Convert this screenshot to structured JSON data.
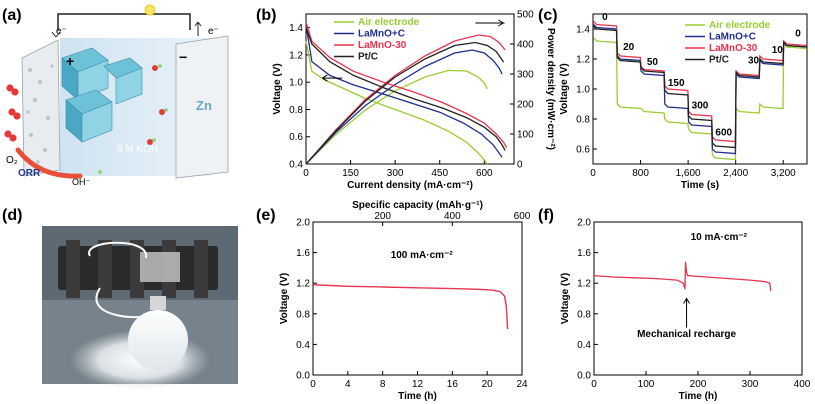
{
  "panels": {
    "a": {
      "label": "(a)",
      "texts": {
        "e_left": "e⁻",
        "e_right": "e⁻",
        "plus": "+",
        "minus": "−",
        "o2": "O₂",
        "orr": "ORR",
        "koh": "6 M KOH",
        "oh": "OH⁻",
        "zn": "Zn"
      }
    },
    "b": {
      "label": "(b)"
    },
    "c": {
      "label": "(c)"
    },
    "d": {
      "label": "(d)"
    },
    "e": {
      "label": "(e)"
    },
    "f": {
      "label": "(f)"
    }
  },
  "colors": {
    "air": "#9ACD32",
    "lamno_c": "#1F2F8F",
    "lamno30": "#E8344E",
    "ptc": "#222222",
    "e_curve": "#E8344E",
    "f_curve": "#E8344E"
  },
  "chart_data": [
    {
      "panel": "b",
      "type": "line",
      "xlabel": "Current density (mA·cm⁻²)",
      "ylabel": "Voltage (V)",
      "ylabel2": "Power density (mW·cm⁻²)",
      "xlim": [
        0,
        700
      ],
      "ylim": [
        0.4,
        1.5
      ],
      "y2lim": [
        0,
        500
      ],
      "xticks": [
        0,
        150,
        300,
        450,
        600
      ],
      "yticks": [
        0.4,
        0.6,
        0.8,
        1.0,
        1.2,
        1.4
      ],
      "y2ticks": [
        0,
        100,
        200,
        300,
        400,
        500
      ],
      "legend": [
        "Air electrode",
        "LaMnO+C",
        "LaMnO-30",
        "Pt/C"
      ],
      "legend_position": "top",
      "series": [
        {
          "name": "Air electrode",
          "axis": "left",
          "x": [
            0,
            20,
            60,
            120,
            200,
            300,
            400,
            480,
            540,
            580,
            600,
            610
          ],
          "y": [
            1.3,
            1.08,
            1.02,
            0.96,
            0.88,
            0.8,
            0.72,
            0.64,
            0.56,
            0.48,
            0.43,
            0.4
          ]
        },
        {
          "name": "Air electrode",
          "axis": "right",
          "x": [
            0,
            100,
            200,
            300,
            400,
            480,
            540,
            580,
            600,
            610
          ],
          "y": [
            0,
            98,
            180,
            244,
            290,
            312,
            310,
            290,
            270,
            250
          ]
        },
        {
          "name": "LaMnO+C",
          "axis": "left",
          "x": [
            0,
            20,
            80,
            160,
            250,
            350,
            450,
            530,
            590,
            630,
            650,
            660
          ],
          "y": [
            1.42,
            1.15,
            1.05,
            0.98,
            0.92,
            0.85,
            0.78,
            0.7,
            0.62,
            0.54,
            0.48,
            0.45
          ]
        },
        {
          "name": "LaMnO+C",
          "axis": "right",
          "x": [
            0,
            100,
            200,
            300,
            400,
            500,
            560,
            600,
            630,
            650,
            660
          ],
          "y": [
            0,
            105,
            195,
            265,
            325,
            370,
            380,
            370,
            345,
            320,
            300
          ]
        },
        {
          "name": "LaMnO-30",
          "axis": "left",
          "x": [
            0,
            20,
            80,
            160,
            260,
            360,
            460,
            540,
            600,
            640,
            665,
            675
          ],
          "y": [
            1.44,
            1.3,
            1.18,
            1.08,
            1.0,
            0.93,
            0.85,
            0.77,
            0.7,
            0.62,
            0.56,
            0.52
          ]
        },
        {
          "name": "LaMnO-30",
          "axis": "right",
          "x": [
            0,
            100,
            200,
            300,
            400,
            500,
            580,
            620,
            650,
            670
          ],
          "y": [
            0,
            113,
            215,
            295,
            360,
            410,
            430,
            425,
            405,
            380
          ]
        },
        {
          "name": "Pt/C",
          "axis": "left",
          "x": [
            0,
            20,
            80,
            160,
            260,
            360,
            460,
            540,
            600,
            640,
            660,
            670
          ],
          "y": [
            1.4,
            1.28,
            1.15,
            1.05,
            0.96,
            0.88,
            0.81,
            0.74,
            0.67,
            0.6,
            0.54,
            0.5
          ]
        },
        {
          "name": "Pt/C",
          "axis": "right",
          "x": [
            0,
            100,
            200,
            300,
            400,
            500,
            570,
            610,
            640,
            665
          ],
          "y": [
            0,
            110,
            210,
            290,
            350,
            395,
            405,
            395,
            375,
            340
          ]
        }
      ],
      "arrows": [
        {
          "direction": "left",
          "near": "Air electrode voltage"
        },
        {
          "direction": "right",
          "near": "power density"
        }
      ]
    },
    {
      "panel": "c",
      "type": "line",
      "xlabel": "Time (s)",
      "ylabel": "Voltage (V)",
      "xlim": [
        0,
        3600
      ],
      "ylim": [
        0.5,
        1.5
      ],
      "xticks": [
        0,
        800,
        1600,
        2400,
        3200
      ],
      "yticks": [
        0.6,
        0.8,
        1.0,
        1.2,
        1.4
      ],
      "legend": [
        "Air electrode",
        "LaMnO+C",
        "LaMnO-30",
        "Pt/C"
      ],
      "legend_position": "top-right",
      "step_labels": [
        {
          "text": "0",
          "x": 200,
          "y": 1.46
        },
        {
          "text": "20",
          "x": 600,
          "y": 1.26
        },
        {
          "text": "50",
          "x": 1000,
          "y": 1.16
        },
        {
          "text": "150",
          "x": 1400,
          "y": 1.02
        },
        {
          "text": "300",
          "x": 1800,
          "y": 0.87
        },
        {
          "text": "600",
          "x": 2200,
          "y": 0.69
        },
        {
          "text": "30",
          "x": 2700,
          "y": 1.17
        },
        {
          "text": "10",
          "x": 3100,
          "y": 1.24
        },
        {
          "text": "0",
          "x": 3450,
          "y": 1.35
        }
      ],
      "segments_x": [
        0,
        400,
        800,
        1200,
        1600,
        2000,
        2400,
        2800,
        3200,
        3600
      ],
      "series": [
        {
          "name": "Air electrode",
          "levels": [
            1.32,
            0.88,
            0.85,
            0.78,
            0.71,
            0.54,
            0.85,
            0.88,
            1.28
          ]
        },
        {
          "name": "LaMnO+C",
          "levels": [
            1.41,
            1.2,
            1.1,
            0.88,
            0.76,
            0.58,
            1.08,
            1.17,
            1.29
          ]
        },
        {
          "name": "LaMnO-30",
          "levels": [
            1.43,
            1.22,
            1.13,
            1.0,
            0.83,
            0.66,
            1.1,
            1.2,
            1.3
          ]
        },
        {
          "name": "Pt/C",
          "levels": [
            1.4,
            1.19,
            1.12,
            0.97,
            0.8,
            0.62,
            1.09,
            1.18,
            1.29
          ]
        }
      ]
    },
    {
      "panel": "e",
      "type": "line",
      "xlabel": "Time (h)",
      "x2label": "Specific capacity (mAh·g⁻¹)",
      "ylabel": "Voltage (V)",
      "annotation": "100 mA·cm⁻²",
      "xlim": [
        0,
        24
      ],
      "x2lim": [
        0,
        600
      ],
      "ylim": [
        0.0,
        2.0
      ],
      "xticks": [
        0,
        4,
        8,
        12,
        16,
        20,
        24
      ],
      "x2ticks": [
        200,
        400,
        600
      ],
      "yticks": [
        0.0,
        0.4,
        0.8,
        1.2,
        1.6,
        2.0
      ],
      "x": [
        0,
        2,
        4,
        8,
        12,
        16,
        19,
        20.5,
        21.5,
        22.0,
        22.2,
        22.35
      ],
      "y": [
        1.18,
        1.17,
        1.16,
        1.15,
        1.14,
        1.13,
        1.12,
        1.11,
        1.09,
        1.03,
        0.9,
        0.6
      ]
    },
    {
      "panel": "f",
      "type": "line",
      "xlabel": "Time (h)",
      "ylabel": "Voltage (V)",
      "annotation": "10 mA·cm⁻²",
      "callout": "Mechanical recharge",
      "xlim": [
        0,
        400
      ],
      "ylim": [
        0.0,
        2.0
      ],
      "xticks": [
        0,
        100,
        200,
        300,
        400
      ],
      "yticks": [
        0.0,
        0.4,
        0.8,
        1.2,
        1.6,
        2.0
      ],
      "x": [
        0,
        40,
        80,
        120,
        160,
        172,
        175,
        176,
        178,
        180,
        220,
        260,
        300,
        330,
        338,
        340
      ],
      "y": [
        1.3,
        1.28,
        1.27,
        1.26,
        1.24,
        1.2,
        1.12,
        1.48,
        1.34,
        1.3,
        1.28,
        1.26,
        1.24,
        1.22,
        1.2,
        1.1
      ]
    }
  ]
}
